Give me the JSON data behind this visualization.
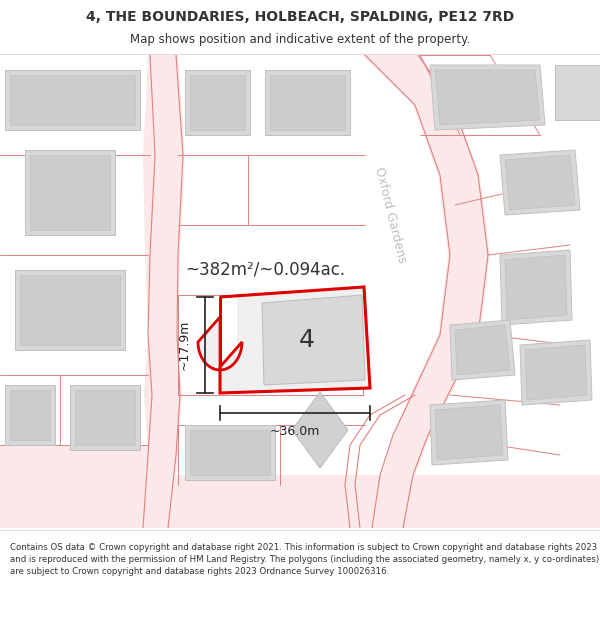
{
  "title": "4, THE BOUNDARIES, HOLBEACH, SPALDING, PE12 7RD",
  "subtitle": "Map shows position and indicative extent of the property.",
  "footer": "Contains OS data © Crown copyright and database right 2021. This information is subject to Crown copyright and database rights 2023 and is reproduced with the permission of HM Land Registry. The polygons (including the associated geometry, namely x, y co-ordinates) are subject to Crown copyright and database rights 2023 Ordnance Survey 100026316.",
  "area_text": "~382m²/~0.094ac.",
  "dim_width": "~36.0m",
  "dim_height": "~17.9m",
  "plot_label": "4",
  "street_label": "Oxford Gardens",
  "map_bg": "#ffffff",
  "road_fill": "#fce8e8",
  "road_line": "#e08080",
  "building_fill": "#d8d8d8",
  "building_edge": "#c0c0c0",
  "prop_fill": "#f0f0f0",
  "prop_edge": "#dd0000",
  "dim_color": "#222222",
  "text_color": "#333333",
  "street_color": "#c0c0c0",
  "title_size": 10,
  "subtitle_size": 8.5,
  "footer_size": 6.2,
  "area_size": 12,
  "dim_size": 9,
  "label_size": 18,
  "street_size": 9
}
